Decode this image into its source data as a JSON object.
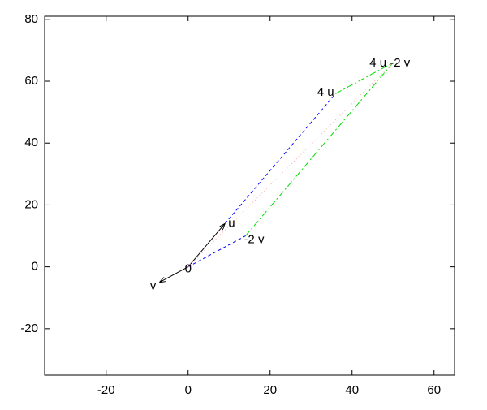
{
  "chart_data": {
    "type": "vector",
    "xlim": [
      -35,
      65
    ],
    "ylim": [
      -35,
      81
    ],
    "xticks": [
      -20,
      0,
      20,
      40,
      60
    ],
    "yticks": [
      -20,
      0,
      20,
      40,
      60,
      80
    ],
    "segments": [
      {
        "x": [
          0,
          9
        ],
        "y": [
          0,
          14
        ],
        "color": "#000000",
        "style": "solid",
        "arrow": true
      },
      {
        "x": [
          0,
          -7
        ],
        "y": [
          0,
          -5
        ],
        "color": "#000000",
        "style": "solid",
        "arrow": true
      },
      {
        "x": [
          0,
          14
        ],
        "y": [
          0,
          10
        ],
        "color": "#0000ff",
        "style": "dashed",
        "arrow": false
      },
      {
        "x": [
          9,
          36
        ],
        "y": [
          14,
          56
        ],
        "color": "#0000ff",
        "style": "dashed",
        "arrow": false
      },
      {
        "x": [
          14,
          50
        ],
        "y": [
          10,
          66
        ],
        "color": "#00dd00",
        "style": "dashdot",
        "arrow": false
      },
      {
        "x": [
          36,
          50
        ],
        "y": [
          56,
          66
        ],
        "color": "#00dd00",
        "style": "dashdot",
        "arrow": false
      },
      {
        "x": [
          0,
          50
        ],
        "y": [
          0,
          66
        ],
        "color": "#ffaaaa",
        "style": "dotted",
        "arrow": false
      }
    ],
    "points": [
      {
        "label": "0",
        "x": 0,
        "y": 0
      },
      {
        "label": "u",
        "x": 9,
        "y": 14
      },
      {
        "label": "v",
        "x": -7,
        "y": -5
      },
      {
        "label": "4 u",
        "x": 36,
        "y": 56
      },
      {
        "label": "-2 v",
        "x": 14,
        "y": 10
      },
      {
        "label": "4 u -2 v",
        "x": 50,
        "y": 66
      }
    ]
  }
}
